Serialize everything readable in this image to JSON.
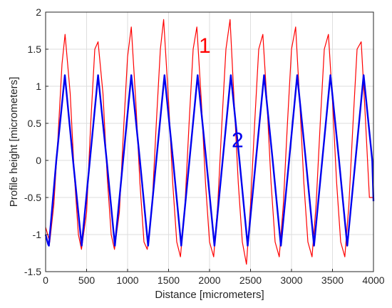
{
  "chart_data": {
    "type": "line",
    "title": "",
    "xlabel": "Distance [micrometers]",
    "ylabel": "Profile height [micrometers]",
    "xlim": [
      0,
      4000
    ],
    "ylim": [
      -1.5,
      2
    ],
    "xticks": [
      0,
      500,
      1000,
      1500,
      2000,
      2500,
      3000,
      3500,
      4000
    ],
    "yticks": [
      -1.5,
      -1,
      -0.5,
      0,
      0.5,
      1,
      1.5,
      2
    ],
    "xtick_labels": [
      "0",
      "500",
      "1000",
      "1500",
      "2000",
      "2500",
      "3000",
      "3500",
      "4000"
    ],
    "ytick_labels": [
      "-1.5",
      "-1",
      "-0.5",
      "0",
      "0.5",
      "1",
      "1.5",
      "2"
    ],
    "grid": true,
    "series": [
      {
        "name": "1",
        "color": "#ff0000",
        "description_of_shape": "noisy measured profile",
        "x": [
          0,
          50,
          100,
          150,
          200,
          237,
          300,
          350,
          400,
          437,
          500,
          550,
          600,
          640,
          700,
          750,
          800,
          840,
          900,
          950,
          1000,
          1045,
          1100,
          1150,
          1200,
          1240,
          1300,
          1350,
          1400,
          1440,
          1500,
          1550,
          1600,
          1645,
          1700,
          1750,
          1800,
          1845,
          1900,
          1950,
          2000,
          2050,
          2100,
          2150,
          2200,
          2250,
          2300,
          2350,
          2400,
          2450,
          2500,
          2550,
          2600,
          2650,
          2700,
          2750,
          2800,
          2850,
          2900,
          2950,
          3000,
          3050,
          3100,
          3150,
          3200,
          3250,
          3300,
          3350,
          3400,
          3450,
          3500,
          3550,
          3600,
          3650,
          3700,
          3750,
          3800,
          3850,
          3900,
          3950,
          4000
        ],
        "y": [
          -0.9,
          -1.1,
          -0.6,
          0.3,
          1.3,
          1.7,
          0.9,
          -0.2,
          -1.0,
          -1.2,
          -0.7,
          0.5,
          1.5,
          1.6,
          0.9,
          -0.2,
          -1.0,
          -1.2,
          -0.7,
          0.4,
          1.4,
          1.8,
          0.8,
          -0.3,
          -1.1,
          -1.2,
          -0.6,
          0.5,
          1.5,
          1.9,
          0.8,
          -0.3,
          -1.1,
          -1.3,
          -0.6,
          0.5,
          1.5,
          1.8,
          0.8,
          -0.3,
          -1.1,
          -1.3,
          -0.6,
          0.5,
          1.5,
          1.9,
          0.8,
          -0.3,
          -1.1,
          -1.4,
          -0.6,
          0.5,
          1.5,
          1.7,
          0.8,
          -0.3,
          -1.1,
          -1.3,
          -0.6,
          0.5,
          1.5,
          1.8,
          0.8,
          -0.3,
          -1.1,
          -1.3,
          -0.6,
          0.5,
          1.5,
          1.7,
          0.8,
          -0.3,
          -1.1,
          -1.3,
          -0.6,
          0.5,
          1.5,
          1.6,
          0.6,
          -0.5,
          -0.5
        ]
      },
      {
        "name": "2",
        "color": "#0000ee",
        "description_of_shape": "sinusoidal fit, amplitude 1.15, period ~405 micrometers",
        "x": [
          0,
          30,
          40,
          130,
          235,
          335,
          440,
          540,
          640,
          745,
          845,
          945,
          1045,
          1150,
          1250,
          1350,
          1450,
          1555,
          1655,
          1755,
          1855,
          1960,
          2060,
          2160,
          2260,
          2365,
          2465,
          2565,
          2665,
          2770,
          2870,
          2970,
          3070,
          3175,
          3275,
          3375,
          3475,
          3580,
          3680,
          3780,
          3880,
          3985,
          4000
        ],
        "y": [
          -1.0,
          -1.13,
          -1.15,
          0,
          1.15,
          0,
          -1.15,
          0,
          1.15,
          0,
          -1.15,
          0,
          1.15,
          0,
          -1.15,
          0,
          1.15,
          0,
          -1.15,
          0,
          1.15,
          0,
          -1.15,
          0,
          1.15,
          0,
          -1.15,
          0,
          1.15,
          0,
          -1.15,
          0,
          1.15,
          0,
          -1.15,
          0,
          1.15,
          0,
          -1.15,
          0,
          1.15,
          0,
          -0.55
        ]
      }
    ],
    "annotations": [
      {
        "text": "1",
        "x": 1870,
        "y": 1.45,
        "color": "#ff0000"
      },
      {
        "text": "2",
        "x": 2270,
        "y": 0.18,
        "color": "#0000ee"
      }
    ]
  }
}
